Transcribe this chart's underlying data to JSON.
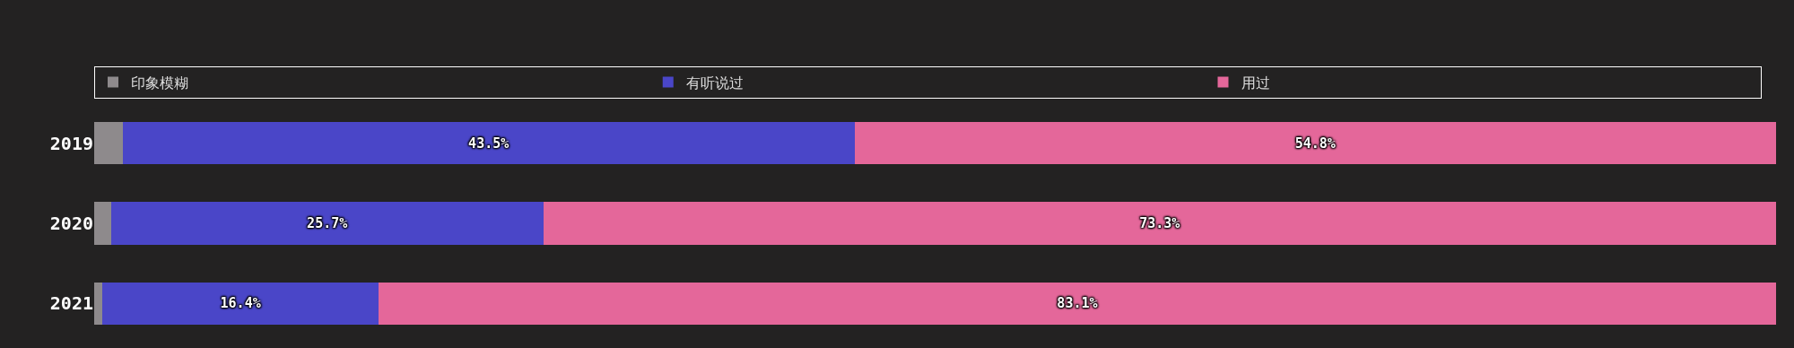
{
  "chart_data": {
    "type": "bar",
    "orientation": "horizontal",
    "stacked": true,
    "categories": [
      "2019",
      "2020",
      "2021"
    ],
    "series": [
      {
        "name": "印象模糊",
        "color": "#8e8a8c",
        "values": [
          1.7,
          1.0,
          0.5
        ],
        "value_labels": [
          null,
          null,
          null
        ]
      },
      {
        "name": "有听说过",
        "color": "#4a46c8",
        "values": [
          43.5,
          25.7,
          16.4
        ],
        "value_labels": [
          "43.5%",
          "25.7%",
          "16.4%"
        ]
      },
      {
        "name": "用过",
        "color": "#e4679a",
        "values": [
          54.8,
          73.3,
          83.1
        ],
        "value_labels": [
          "54.8%",
          "73.3%",
          "83.1%"
        ]
      }
    ],
    "xlim": [
      0,
      100
    ],
    "tick_labels": "y",
    "legend": "top"
  }
}
